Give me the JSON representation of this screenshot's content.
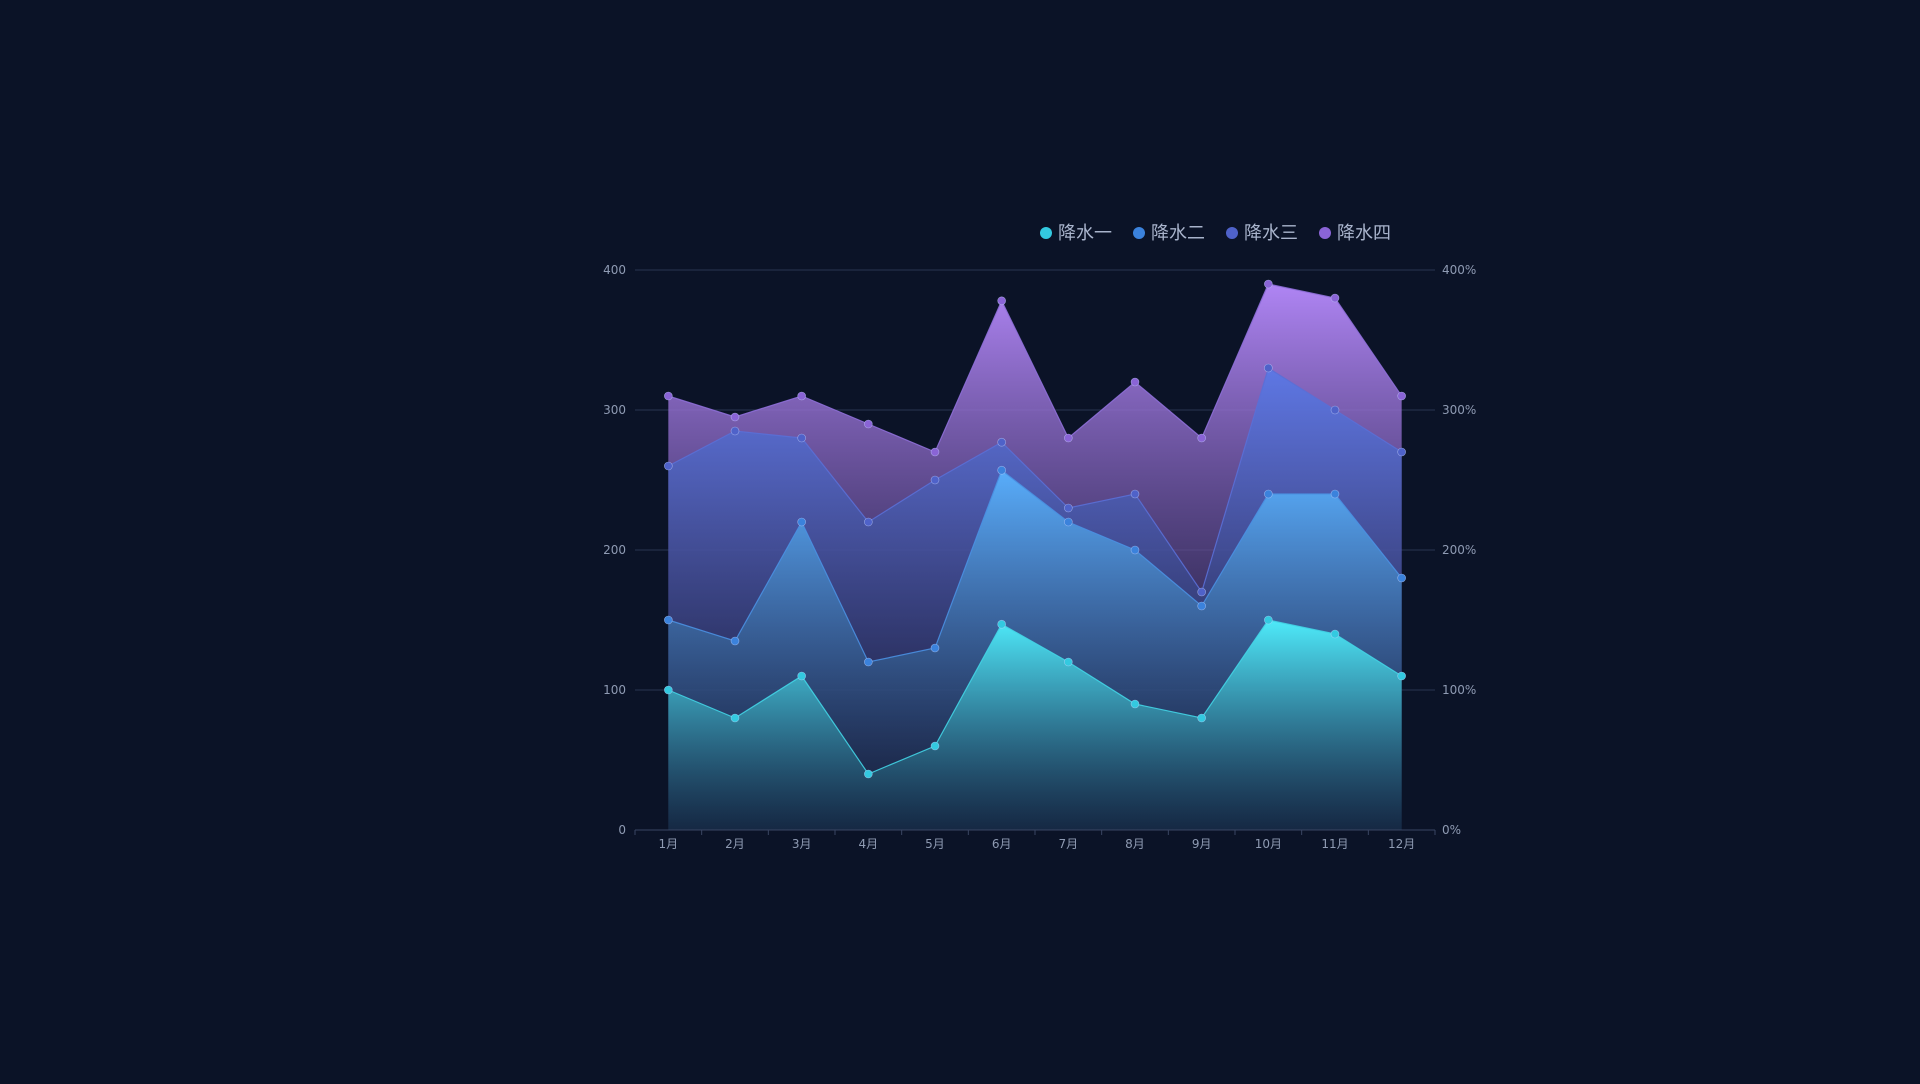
{
  "chart_data": {
    "type": "area",
    "title": "",
    "categories": [
      "1月",
      "2月",
      "3月",
      "4月",
      "5月",
      "6月",
      "7月",
      "8月",
      "9月",
      "10月",
      "11月",
      "12月"
    ],
    "series": [
      {
        "name": "降水一",
        "values": [
          100,
          80,
          110,
          40,
          60,
          147,
          120,
          90,
          80,
          150,
          140,
          110
        ],
        "color_top": "#4ff2ff",
        "color_bottom": "#1a4460",
        "line_color": "#43d4e6",
        "point_color": "#33c9e0"
      },
      {
        "name": "降水二",
        "values": [
          150,
          135,
          220,
          120,
          130,
          257,
          220,
          200,
          160,
          240,
          240,
          180
        ],
        "color_top": "#59b2ff",
        "color_bottom": "#15203c",
        "line_color": "#4a90e2",
        "point_color": "#3b82dc"
      },
      {
        "name": "降水三",
        "values": [
          260,
          285,
          280,
          220,
          250,
          277,
          230,
          240,
          170,
          330,
          300,
          270
        ],
        "color_top": "#5b78e6",
        "color_bottom": "#111a35",
        "line_color": "#5a6fd6",
        "point_color": "#4f62c9"
      },
      {
        "name": "降水四",
        "values": [
          310,
          295,
          310,
          290,
          270,
          378,
          280,
          320,
          280,
          390,
          380,
          310
        ],
        "color_top": "#b88bff",
        "color_bottom": "#1c1638",
        "line_color": "#8e6fd8",
        "point_color": "#8a64d6"
      }
    ],
    "y_axis_left": {
      "min": 0,
      "max": 400,
      "ticks": [
        "0",
        "100",
        "200",
        "300",
        "400"
      ]
    },
    "y_axis_right": {
      "min": 0,
      "max": 400,
      "ticks": [
        "0%",
        "100%",
        "200%",
        "300%",
        "400%"
      ]
    },
    "grid": true,
    "legend_position": "top-right",
    "colors": {
      "background": "#0b1327",
      "grid": "#2a3550",
      "axis_label": "#8f9bb3",
      "legend_text": "#a9b4cc"
    }
  }
}
